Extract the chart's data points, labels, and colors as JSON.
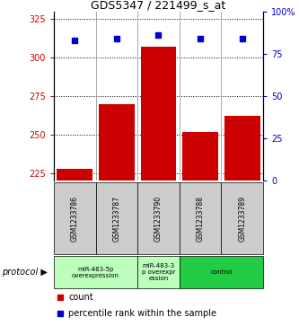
{
  "title": "GDS5347 / 221499_s_at",
  "samples": [
    "GSM1233786",
    "GSM1233787",
    "GSM1233790",
    "GSM1233788",
    "GSM1233789"
  ],
  "counts": [
    228,
    270,
    307,
    252,
    262
  ],
  "percentiles": [
    83,
    84,
    86,
    84,
    84
  ],
  "ylim_left": [
    220,
    330
  ],
  "ylim_right": [
    0,
    100
  ],
  "yticks_left": [
    225,
    250,
    275,
    300,
    325
  ],
  "yticks_right": [
    0,
    25,
    50,
    75,
    100
  ],
  "bar_color": "#cc0000",
  "dot_color": "#0000cc",
  "protocol_groups": [
    {
      "label": "miR-483-5p\noverexpression",
      "samples": [
        0,
        1
      ],
      "color": "#bbffbb"
    },
    {
      "label": "miR-483-3\np overexpr\nession",
      "samples": [
        2
      ],
      "color": "#bbffbb"
    },
    {
      "label": "control",
      "samples": [
        3,
        4
      ],
      "color": "#22cc44"
    }
  ],
  "protocol_label": "protocol",
  "legend_count_label": "count",
  "legend_percentile_label": "percentile rank within the sample",
  "bg_color": "#ffffff",
  "sample_box_color": "#cccccc",
  "bar_width": 0.85
}
